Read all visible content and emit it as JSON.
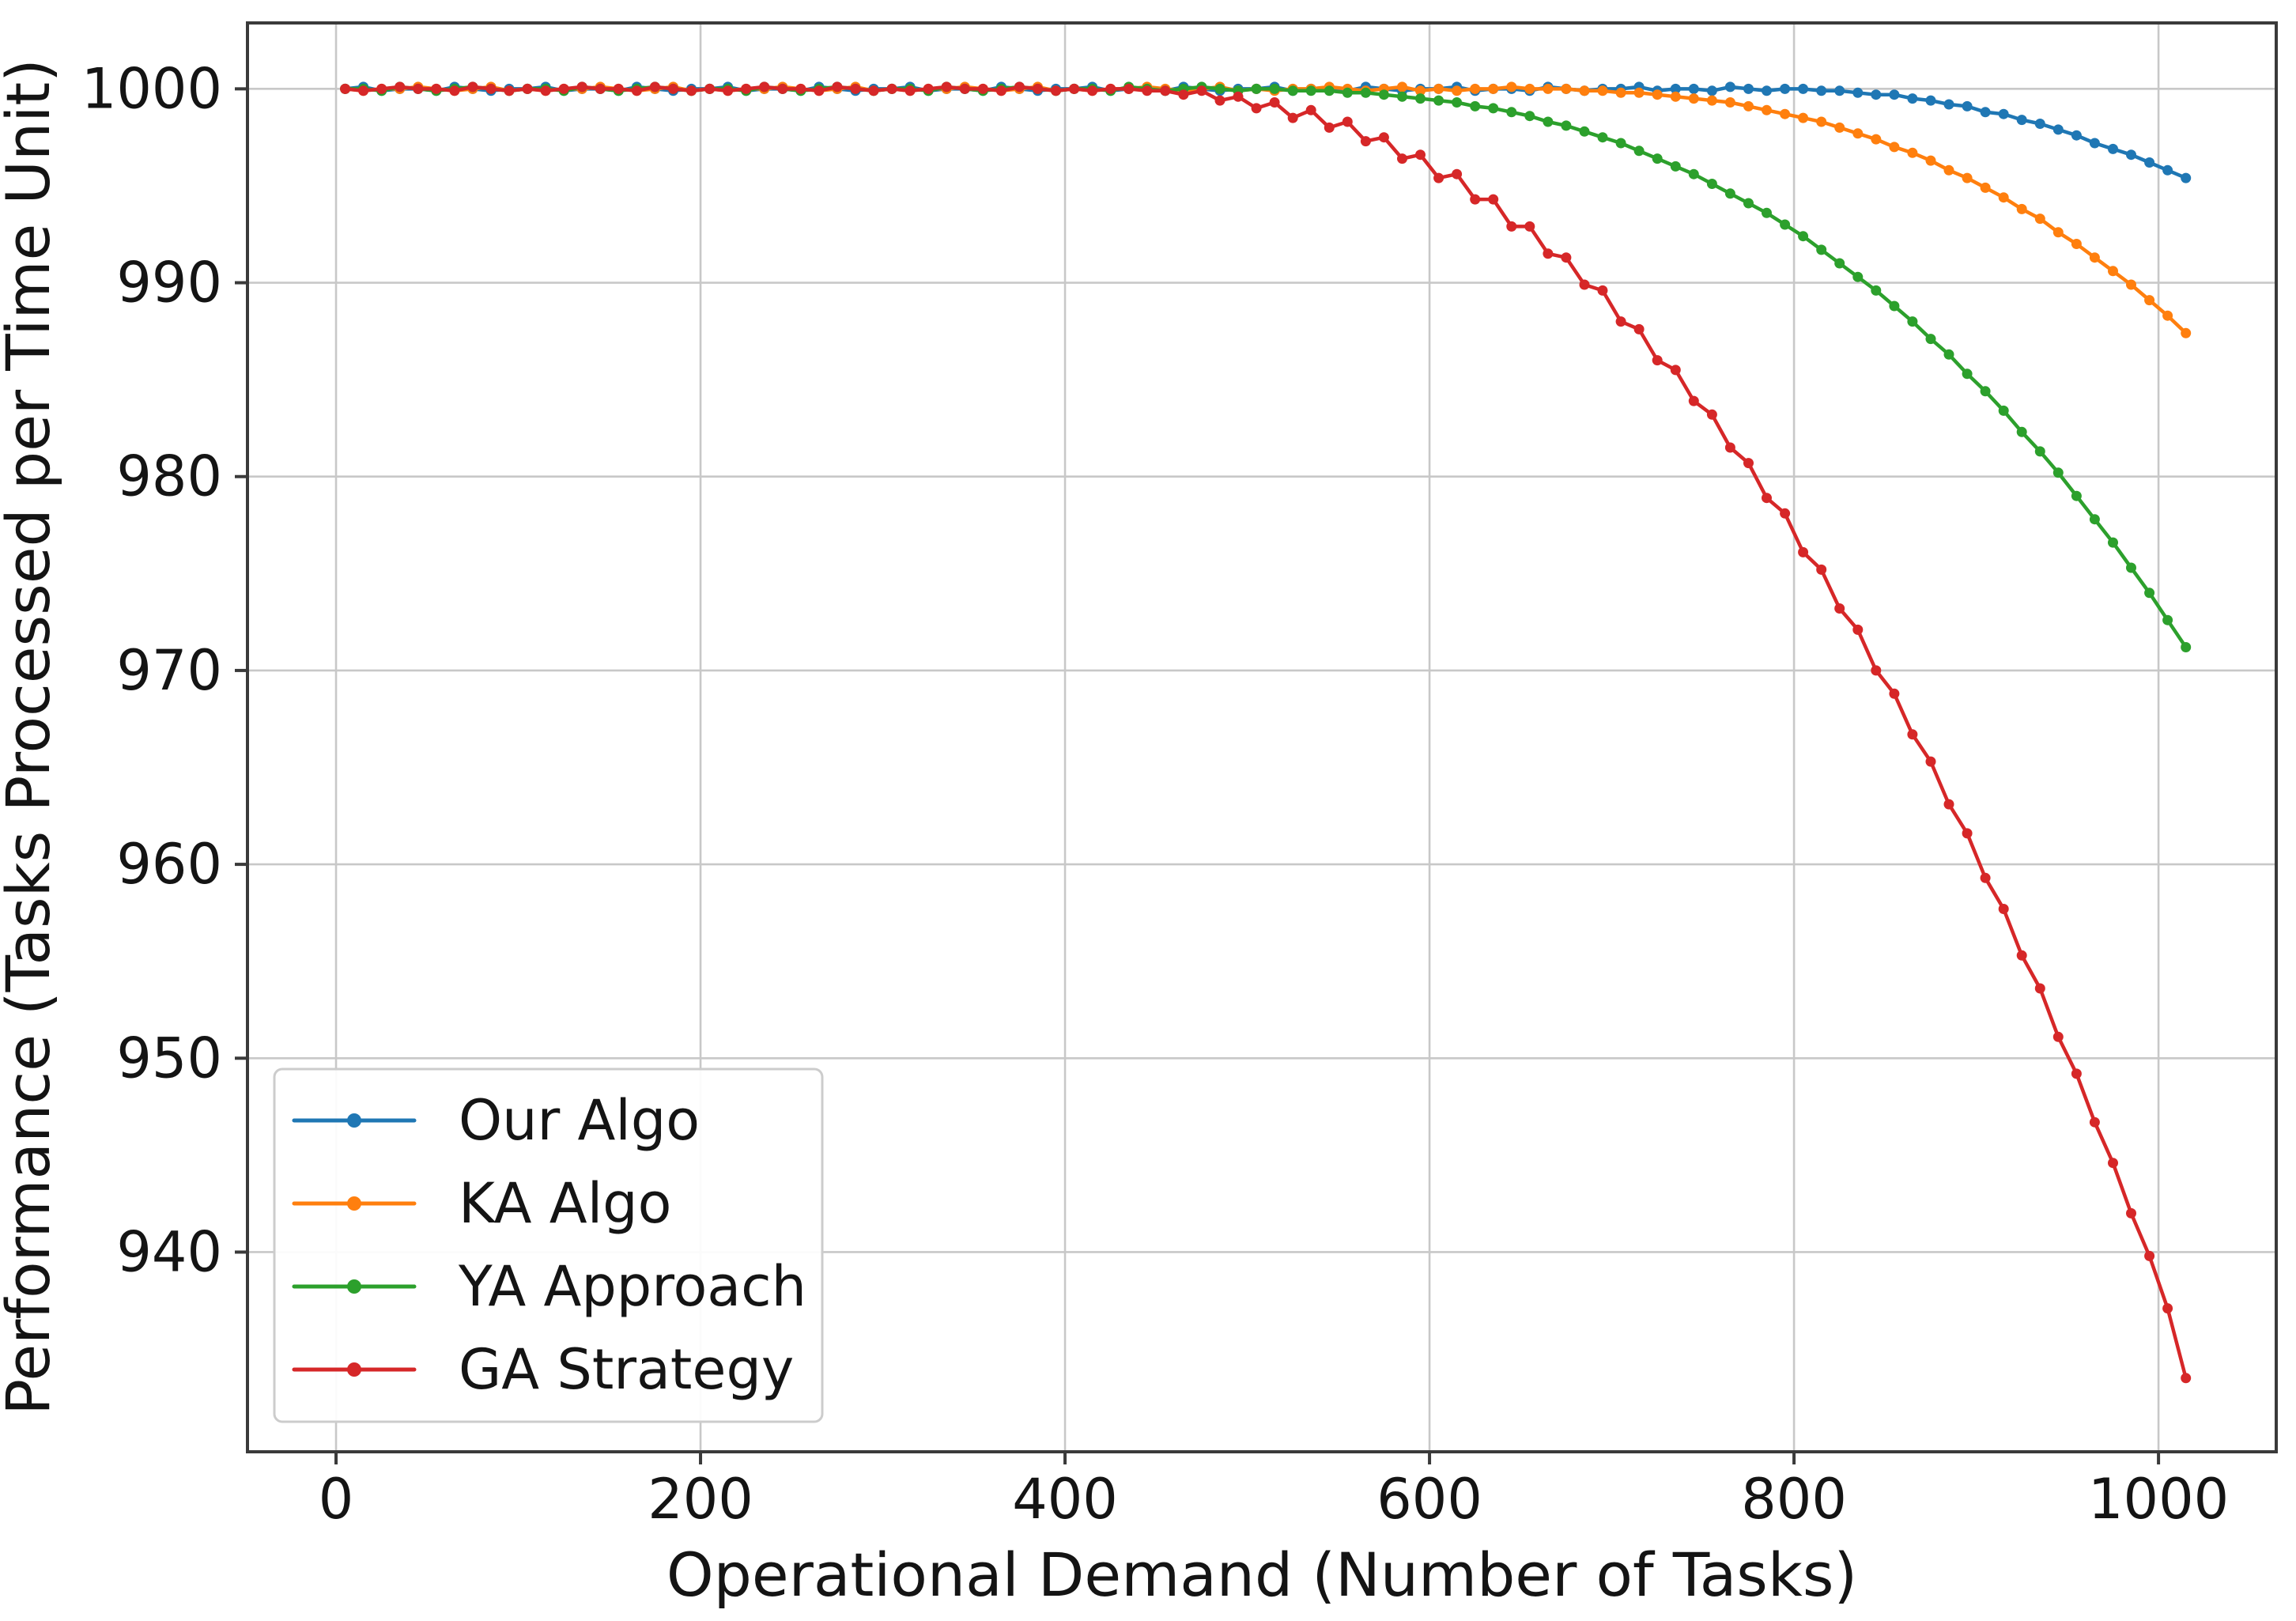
{
  "chart_data": {
    "type": "line",
    "title": "",
    "xlabel": "Operational Demand (Number of Tasks)",
    "ylabel": "Performance (Tasks Processed per Time Unit)",
    "xticks": [
      0,
      200,
      400,
      600,
      800,
      1000
    ],
    "yticks": [
      940,
      950,
      960,
      970,
      980,
      990,
      1000
    ],
    "xlim": [
      -48.6,
      1064.6
    ],
    "ylim": [
      929.7,
      1003.4
    ],
    "grid": true,
    "legend_position": "lower left",
    "background_color": "#ffffff",
    "grid_color": "#c8c8c8",
    "spine_color": "#3a3a3a",
    "text_color": "#141414",
    "legend_border_color": "#cccccc",
    "x": [
      5,
      15,
      25,
      35,
      45,
      55,
      65,
      75,
      85,
      95,
      105,
      115,
      125,
      135,
      145,
      155,
      165,
      175,
      185,
      195,
      205,
      215,
      225,
      235,
      245,
      255,
      265,
      275,
      285,
      295,
      305,
      315,
      325,
      335,
      345,
      355,
      365,
      375,
      385,
      395,
      405,
      415,
      425,
      435,
      445,
      455,
      465,
      475,
      485,
      495,
      505,
      515,
      525,
      535,
      545,
      555,
      565,
      575,
      585,
      595,
      605,
      615,
      625,
      635,
      645,
      655,
      665,
      675,
      685,
      695,
      705,
      715,
      725,
      735,
      745,
      755,
      765,
      775,
      785,
      795,
      805,
      815,
      825,
      835,
      845,
      855,
      865,
      875,
      885,
      895,
      905,
      915,
      925,
      935,
      945,
      955,
      965,
      975,
      985,
      995,
      1005,
      1015
    ],
    "series": [
      {
        "name": "Our Algo",
        "color": "#1f77b4",
        "y": [
          1000.0,
          1000.1,
          999.9,
          1000.0,
          1000.0,
          999.9,
          1000.1,
          1000.0,
          999.9,
          1000.0,
          1000.0,
          1000.1,
          999.9,
          1000.0,
          1000.0,
          999.9,
          1000.1,
          1000.0,
          999.9,
          1000.0,
          1000.0,
          1000.1,
          999.9,
          1000.0,
          1000.0,
          999.9,
          1000.1,
          1000.0,
          999.9,
          1000.0,
          1000.0,
          1000.1,
          999.9,
          1000.0,
          1000.0,
          999.9,
          1000.1,
          1000.0,
          999.9,
          1000.0,
          1000.0,
          1000.1,
          999.9,
          1000.0,
          1000.0,
          999.9,
          1000.1,
          1000.0,
          999.9,
          1000.0,
          1000.0,
          1000.1,
          999.9,
          1000.0,
          1000.0,
          999.9,
          1000.1,
          1000.0,
          999.9,
          1000.0,
          1000.0,
          1000.1,
          999.9,
          1000.0,
          1000.0,
          999.9,
          1000.1,
          1000.0,
          999.9,
          1000.0,
          1000.0,
          1000.1,
          999.9,
          1000.0,
          1000.0,
          999.9,
          1000.1,
          1000.0,
          999.9,
          1000.0,
          1000.0,
          999.9,
          999.9,
          999.8,
          999.7,
          999.7,
          999.5,
          999.4,
          999.2,
          999.1,
          998.8,
          998.7,
          998.4,
          998.2,
          997.9,
          997.6,
          997.2,
          996.9,
          996.6,
          996.2,
          995.8,
          995.4
        ]
      },
      {
        "name": "KA Algo",
        "color": "#ff7f0e",
        "y": [
          1000.0,
          999.9,
          1000.0,
          1000.0,
          1000.1,
          1000.0,
          999.9,
          1000.0,
          1000.1,
          999.9,
          1000.0,
          999.9,
          1000.0,
          1000.0,
          1000.1,
          1000.0,
          999.9,
          1000.0,
          1000.1,
          999.9,
          1000.0,
          999.9,
          1000.0,
          1000.0,
          1000.1,
          1000.0,
          999.9,
          1000.0,
          1000.1,
          999.9,
          1000.0,
          999.9,
          1000.0,
          1000.0,
          1000.1,
          1000.0,
          999.9,
          1000.0,
          1000.1,
          999.9,
          1000.0,
          999.9,
          1000.0,
          1000.0,
          1000.1,
          1000.0,
          999.9,
          1000.0,
          1000.1,
          999.9,
          1000.0,
          999.9,
          1000.0,
          1000.0,
          1000.1,
          1000.0,
          999.9,
          1000.0,
          1000.1,
          999.9,
          1000.0,
          999.9,
          1000.0,
          1000.0,
          1000.1,
          1000.0,
          1000.0,
          1000.0,
          999.9,
          999.9,
          999.8,
          999.8,
          999.7,
          999.6,
          999.5,
          999.4,
          999.3,
          999.1,
          998.9,
          998.7,
          998.5,
          998.3,
          998.0,
          997.7,
          997.4,
          997.0,
          996.7,
          996.3,
          995.8,
          995.4,
          994.9,
          994.4,
          993.8,
          993.3,
          992.6,
          992.0,
          991.3,
          990.6,
          989.9,
          989.1,
          988.3,
          987.4
        ]
      },
      {
        "name": "YA Approach",
        "color": "#2ca02c",
        "y": [
          1000.0,
          1000.0,
          999.9,
          1000.1,
          1000.0,
          999.9,
          1000.0,
          1000.1,
          1000.0,
          999.9,
          1000.0,
          1000.0,
          999.9,
          1000.1,
          1000.0,
          999.9,
          1000.0,
          1000.1,
          1000.0,
          999.9,
          1000.0,
          1000.0,
          999.9,
          1000.1,
          1000.0,
          999.9,
          1000.0,
          1000.1,
          1000.0,
          999.9,
          1000.0,
          1000.0,
          999.9,
          1000.1,
          1000.0,
          999.9,
          1000.0,
          1000.1,
          1000.0,
          999.9,
          1000.0,
          1000.0,
          999.9,
          1000.1,
          1000.0,
          999.9,
          1000.0,
          1000.1,
          1000.0,
          999.9,
          1000.0,
          1000.0,
          999.9,
          999.9,
          999.9,
          999.8,
          999.8,
          999.7,
          999.6,
          999.5,
          999.4,
          999.3,
          999.1,
          999.0,
          998.8,
          998.6,
          998.3,
          998.1,
          997.8,
          997.5,
          997.2,
          996.8,
          996.4,
          996.0,
          995.6,
          995.1,
          994.6,
          994.1,
          993.6,
          993.0,
          992.4,
          991.7,
          991.0,
          990.3,
          989.6,
          988.8,
          988.0,
          987.1,
          986.3,
          985.3,
          984.4,
          983.4,
          982.3,
          981.3,
          980.2,
          979.0,
          977.8,
          976.6,
          975.3,
          974.0,
          972.6,
          971.2
        ]
      },
      {
        "name": "GA Strategy",
        "color": "#d62728",
        "y": [
          1000.0,
          999.9,
          1000.0,
          1000.1,
          1000.0,
          1000.0,
          999.9,
          1000.1,
          1000.0,
          999.9,
          1000.0,
          999.9,
          1000.0,
          1000.1,
          1000.0,
          1000.0,
          999.9,
          1000.1,
          1000.0,
          999.9,
          1000.0,
          999.9,
          1000.0,
          1000.1,
          1000.0,
          1000.0,
          999.9,
          1000.1,
          1000.0,
          999.9,
          1000.0,
          999.9,
          1000.0,
          1000.1,
          1000.0,
          1000.0,
          999.9,
          1000.1,
          1000.0,
          999.9,
          1000.0,
          999.9,
          1000.0,
          1000.0,
          999.9,
          999.9,
          999.7,
          999.9,
          999.4,
          999.6,
          999.0,
          999.3,
          998.5,
          998.9,
          998.0,
          998.3,
          997.3,
          997.5,
          996.4,
          996.6,
          995.4,
          995.6,
          994.3,
          994.3,
          992.9,
          992.9,
          991.5,
          991.3,
          989.9,
          989.6,
          988.0,
          987.6,
          986.0,
          985.5,
          983.9,
          983.2,
          981.5,
          980.7,
          978.9,
          978.1,
          976.1,
          975.2,
          973.2,
          972.1,
          970.0,
          968.8,
          966.7,
          965.3,
          963.1,
          961.6,
          959.3,
          957.7,
          955.3,
          953.6,
          951.1,
          949.2,
          946.7,
          944.6,
          942.0,
          939.8,
          937.1,
          933.5
        ]
      }
    ]
  }
}
